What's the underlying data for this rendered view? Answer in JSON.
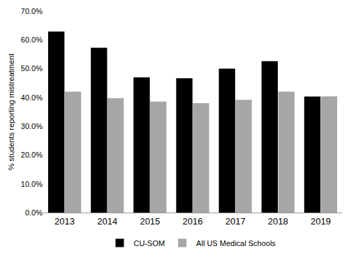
{
  "chart_data": {
    "type": "bar",
    "y_label": "% students reporting mistreatment",
    "categories": [
      "2013",
      "2014",
      "2015",
      "2016",
      "2017",
      "2018",
      "2019"
    ],
    "series": [
      {
        "name": "CU-SOM",
        "color": "#000000",
        "values": [
          62.9,
          57.3,
          47.0,
          46.7,
          50.0,
          52.6,
          40.3
        ]
      },
      {
        "name": "All US Medical Schools",
        "color": "#a6a6a6",
        "values": [
          42.0,
          39.8,
          38.6,
          38.0,
          39.2,
          42.0,
          40.4
        ]
      }
    ],
    "ylim": [
      0,
      70
    ],
    "yticks": [
      {
        "value": 0,
        "label": "0.0%"
      },
      {
        "value": 10,
        "label": "10.0%"
      },
      {
        "value": 20,
        "label": "20.0%"
      },
      {
        "value": 30,
        "label": "30.0%"
      },
      {
        "value": 40,
        "label": "40.0%"
      },
      {
        "value": 50,
        "label": "50.0%"
      },
      {
        "value": 60,
        "label": "60.0%"
      },
      {
        "value": 70,
        "label": "70.0%"
      }
    ],
    "grid": false,
    "legend": "bottom"
  }
}
